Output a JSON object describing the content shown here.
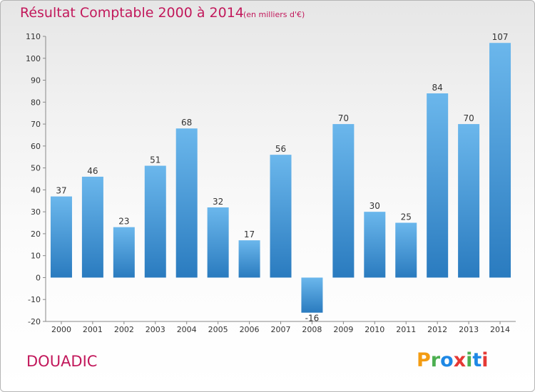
{
  "title": "Résultat Comptable 2000 à 2014",
  "subtitle": "(en milliers d'€)",
  "commune": "DOUADIC",
  "logo": {
    "letters": [
      "P",
      "r",
      "o",
      "x",
      "i",
      "t",
      "i"
    ],
    "colors": [
      "#f39c12",
      "#4caf50",
      "#1e88e5",
      "#e53935",
      "#4caf50",
      "#1e88e5",
      "#e53935"
    ]
  },
  "colors": {
    "bar_top": "#6bb7ec",
    "bar_bottom": "#2a7bbf",
    "accent": "#c2185b"
  },
  "chart_data": {
    "type": "bar",
    "categories": [
      "2000",
      "2001",
      "2002",
      "2003",
      "2004",
      "2005",
      "2006",
      "2007",
      "2008",
      "2009",
      "2010",
      "2011",
      "2012",
      "2013",
      "2014"
    ],
    "values": [
      37,
      46,
      23,
      51,
      68,
      32,
      17,
      56,
      -16,
      70,
      30,
      25,
      84,
      70,
      107
    ],
    "data_labels": [
      "37",
      "46",
      "23",
      "51",
      "68",
      "32",
      "17",
      "56",
      "-16",
      "70",
      "30",
      "25",
      "84",
      "70",
      "107"
    ],
    "yticks": [
      -20,
      -10,
      0,
      10,
      20,
      30,
      40,
      50,
      60,
      70,
      80,
      90,
      100,
      110
    ],
    "ylim": [
      -20,
      110
    ],
    "grid": false,
    "legend": "none"
  }
}
